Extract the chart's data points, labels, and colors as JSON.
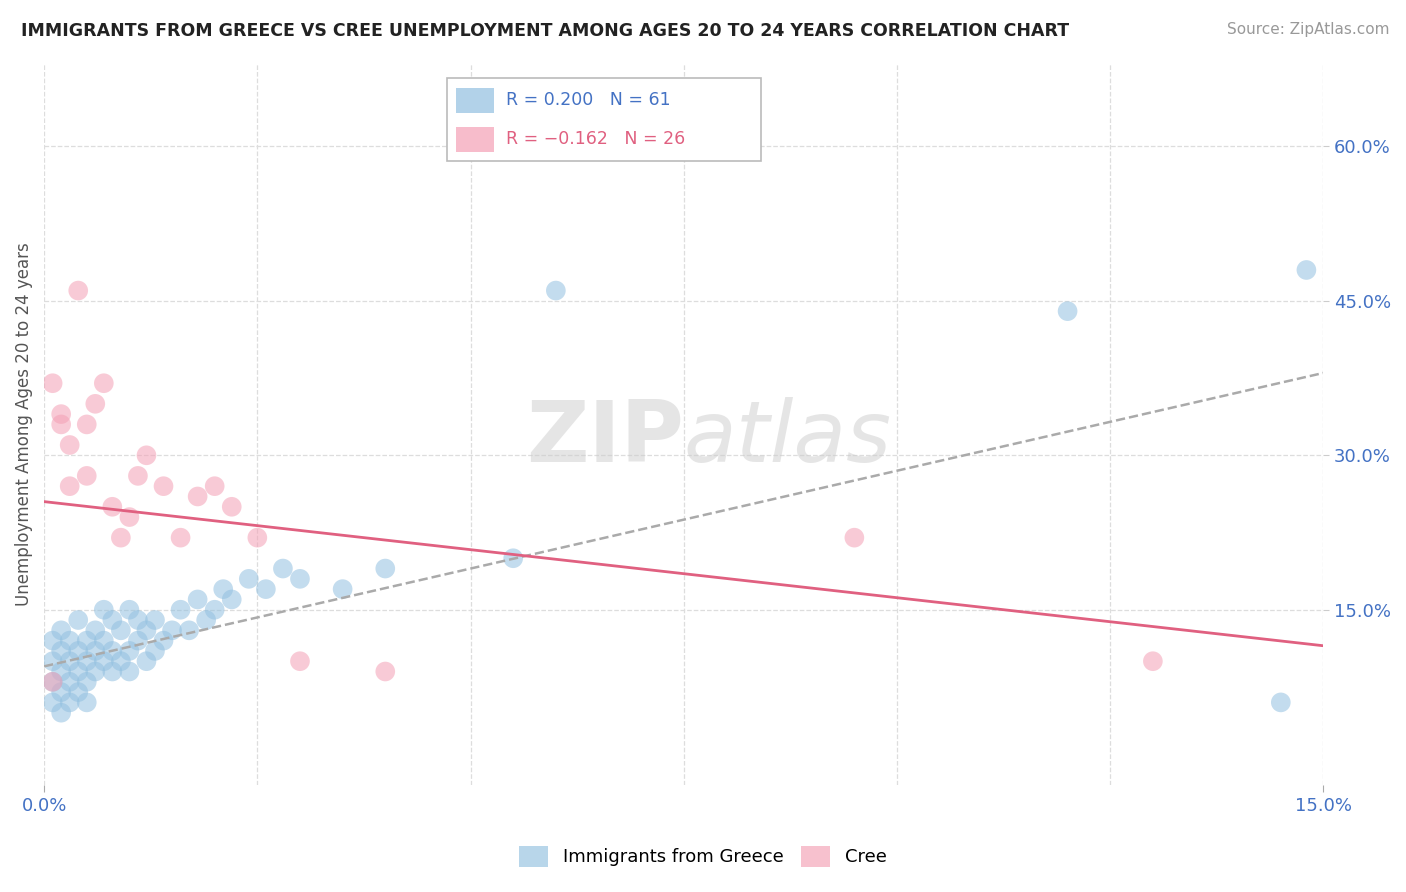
{
  "title": "IMMIGRANTS FROM GREECE VS CREE UNEMPLOYMENT AMONG AGES 20 TO 24 YEARS CORRELATION CHART",
  "source": "Source: ZipAtlas.com",
  "ylabel": "Unemployment Among Ages 20 to 24 years",
  "ylabel_right_ticks": [
    "60.0%",
    "45.0%",
    "30.0%",
    "15.0%"
  ],
  "ylabel_right_vals": [
    0.6,
    0.45,
    0.3,
    0.15
  ],
  "xlim": [
    0.0,
    0.15
  ],
  "ylim": [
    -0.02,
    0.68
  ],
  "blue_color": "#92C0E0",
  "pink_color": "#F4A0B5",
  "blue_line_color": "#6699CC",
  "pink_line_color": "#E06080",
  "grid_color": "#DDDDDD",
  "background_color": "#FFFFFF",
  "blue_line_y0": 0.095,
  "blue_line_y1": 0.38,
  "pink_line_y0": 0.255,
  "pink_line_y1": 0.115,
  "watermark_color": "#CCCCCC",
  "watermark_alpha": 0.5
}
